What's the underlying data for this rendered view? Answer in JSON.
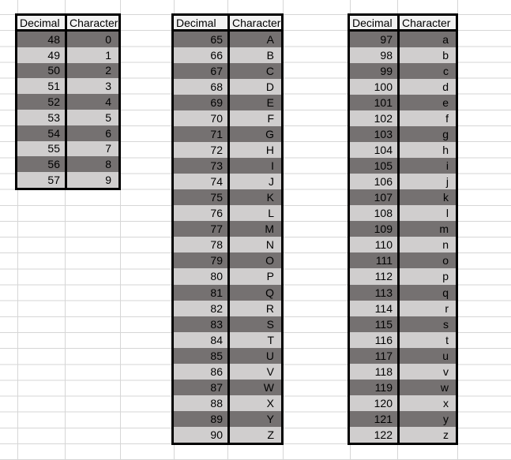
{
  "sheet": {
    "background": "#FFFFFF",
    "gridline_color": "#D6D6D6"
  },
  "colors": {
    "row_dark": "#757171",
    "row_light": "#D0CECE",
    "header_bg": "#F2F2F2",
    "border": "#000000",
    "text": "#000000"
  },
  "tables": [
    {
      "name": "digits",
      "headers": [
        "Decimal",
        "Character"
      ],
      "rows": [
        [
          "48",
          "0"
        ],
        [
          "49",
          "1"
        ],
        [
          "50",
          "2"
        ],
        [
          "51",
          "3"
        ],
        [
          "52",
          "4"
        ],
        [
          "53",
          "5"
        ],
        [
          "54",
          "6"
        ],
        [
          "55",
          "7"
        ],
        [
          "56",
          "8"
        ],
        [
          "57",
          "9"
        ]
      ]
    },
    {
      "name": "uppercase",
      "headers": [
        "Decimal",
        "Character"
      ],
      "rows": [
        [
          "65",
          "A"
        ],
        [
          "66",
          "B"
        ],
        [
          "67",
          "C"
        ],
        [
          "68",
          "D"
        ],
        [
          "69",
          "E"
        ],
        [
          "70",
          "F"
        ],
        [
          "71",
          "G"
        ],
        [
          "72",
          "H"
        ],
        [
          "73",
          "I"
        ],
        [
          "74",
          "J"
        ],
        [
          "75",
          "K"
        ],
        [
          "76",
          "L"
        ],
        [
          "77",
          "M"
        ],
        [
          "78",
          "N"
        ],
        [
          "79",
          "O"
        ],
        [
          "80",
          "P"
        ],
        [
          "81",
          "Q"
        ],
        [
          "82",
          "R"
        ],
        [
          "83",
          "S"
        ],
        [
          "84",
          "T"
        ],
        [
          "85",
          "U"
        ],
        [
          "86",
          "V"
        ],
        [
          "87",
          "W"
        ],
        [
          "88",
          "X"
        ],
        [
          "89",
          "Y"
        ],
        [
          "90",
          "Z"
        ]
      ]
    },
    {
      "name": "lowercase",
      "headers": [
        "Decimal",
        "Character"
      ],
      "rows": [
        [
          "97",
          "a"
        ],
        [
          "98",
          "b"
        ],
        [
          "99",
          "c"
        ],
        [
          "100",
          "d"
        ],
        [
          "101",
          "e"
        ],
        [
          "102",
          "f"
        ],
        [
          "103",
          "g"
        ],
        [
          "104",
          "h"
        ],
        [
          "105",
          "i"
        ],
        [
          "106",
          "j"
        ],
        [
          "107",
          "k"
        ],
        [
          "108",
          "l"
        ],
        [
          "109",
          "m"
        ],
        [
          "110",
          "n"
        ],
        [
          "111",
          "o"
        ],
        [
          "112",
          "p"
        ],
        [
          "113",
          "q"
        ],
        [
          "114",
          "r"
        ],
        [
          "115",
          "s"
        ],
        [
          "116",
          "t"
        ],
        [
          "117",
          "u"
        ],
        [
          "118",
          "v"
        ],
        [
          "119",
          "w"
        ],
        [
          "120",
          "x"
        ],
        [
          "121",
          "y"
        ],
        [
          "122",
          "z"
        ]
      ]
    }
  ]
}
